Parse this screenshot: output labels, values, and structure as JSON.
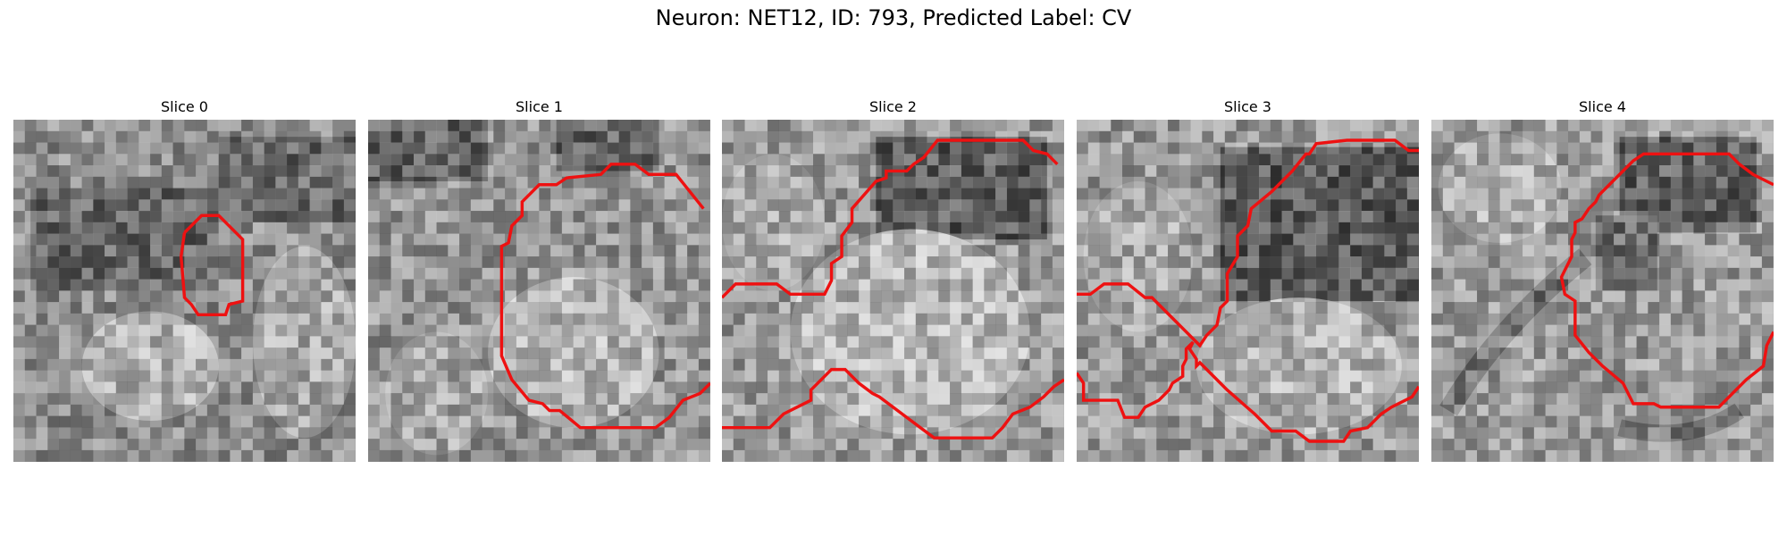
{
  "figure": {
    "title": "Neuron: NET12, ID: 793, Predicted Label: CV",
    "contour_color": "#ee1111",
    "colormap": "gray"
  },
  "slices": [
    {
      "title": "Slice 0"
    },
    {
      "title": "Slice 1"
    },
    {
      "title": "Slice 2"
    },
    {
      "title": "Slice 3"
    },
    {
      "title": "Slice 4"
    }
  ]
}
